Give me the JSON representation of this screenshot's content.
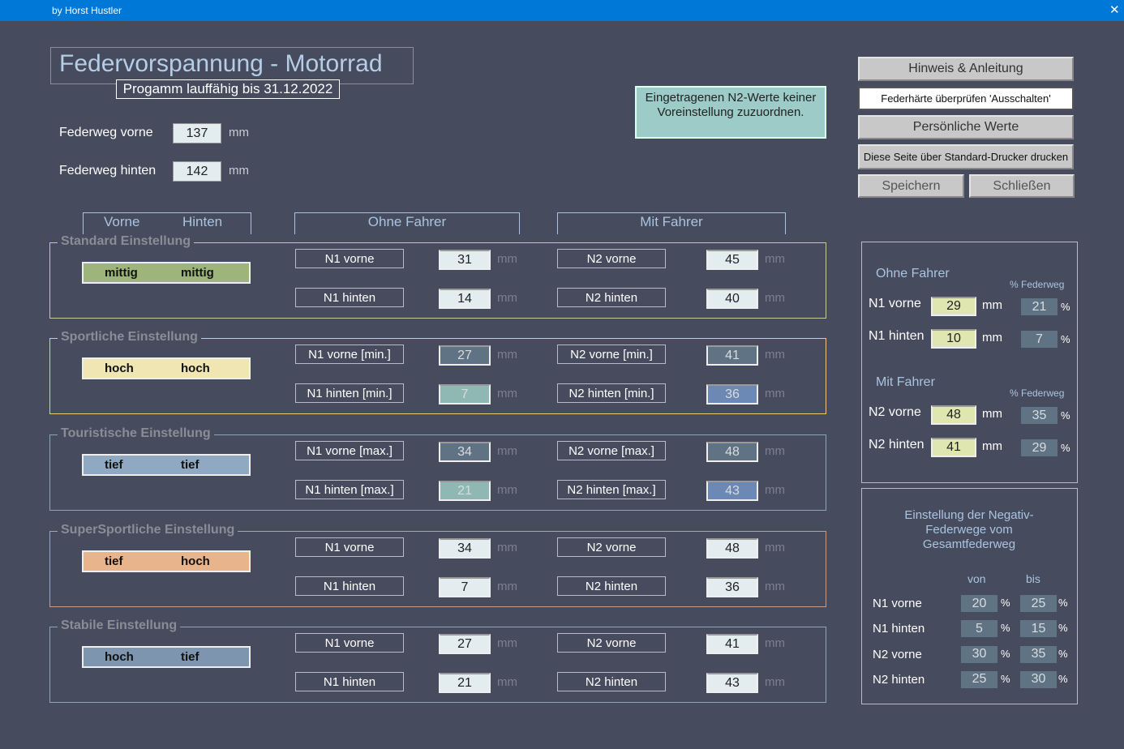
{
  "titlebar": {
    "text": "by Horst Hustler",
    "close": "✕"
  },
  "header": {
    "title": "Federvorspannung - Motorrad",
    "subtitle": "Progamm lauffähig bis 31.12.2022"
  },
  "units": {
    "mm": "mm",
    "pct": "%"
  },
  "travel": [
    {
      "label": "Federweg vorne",
      "value": 137
    },
    {
      "label": "Federweg hinten",
      "value": 142
    }
  ],
  "notice": "Eingetragenen N2-Werte keiner Voreinstellung zuzuordnen.",
  "buttons": [
    "Hinweis & Anleitung",
    "Federhärte überprüfen  'Ausschalten'",
    "Persönliche Werte",
    "Diese Seite über Standard-Drucker drucken",
    "Speichern",
    "Schließen"
  ],
  "column_headers": {
    "front": "Vorne",
    "rear": "Hinten",
    "without_rider": "Ohne Fahrer",
    "with_rider": "Mit Fahrer"
  },
  "sections": [
    {
      "title": "Standard Einstellung",
      "front": "mittig",
      "rear": "mittig",
      "color": "#9db57a",
      "border": "#c8c89a",
      "n1": [
        {
          "label": "N1 vorne",
          "value": 31,
          "color": "#e3ecee"
        },
        {
          "label": "N1 hinten",
          "value": 14,
          "color": "#e3ecee"
        }
      ],
      "n2": [
        {
          "label": "N2 vorne",
          "value": 45,
          "color": "#e3ecee"
        },
        {
          "label": "N2 hinten",
          "value": 40,
          "color": "#e3ecee"
        }
      ]
    },
    {
      "title": "Sportliche Einstellung",
      "front": "hoch",
      "rear": "hoch",
      "color": "#f0e6b4",
      "border": "#e6cd7a",
      "n1": [
        {
          "label": "N1 vorne [min.]",
          "value": 27,
          "color": "#5f7384"
        },
        {
          "label": "N1 hinten [min.]",
          "value": 7,
          "color": "#8fb8b4"
        }
      ],
      "n2": [
        {
          "label": "N2 vorne [min.]",
          "value": 41,
          "color": "#5f7384"
        },
        {
          "label": "N2 hinten [min.]",
          "value": 36,
          "color": "#6b89b4"
        }
      ]
    },
    {
      "title": "Touristische Einstellung",
      "front": "tief",
      "rear": "tief",
      "color": "#8fa9c2",
      "border": "#8aa6b8",
      "n1": [
        {
          "label": "N1 vorne [max.]",
          "value": 34,
          "color": "#5f7384"
        },
        {
          "label": "N1 hinten [max.]",
          "value": 21,
          "color": "#8fb8b4"
        }
      ],
      "n2": [
        {
          "label": "N2 vorne [max.]",
          "value": 48,
          "color": "#5f7384"
        },
        {
          "label": "N2 hinten [max.]",
          "value": 43,
          "color": "#6b89b4"
        }
      ]
    },
    {
      "title": "SuperSportliche Einstellung",
      "front": "tief",
      "rear": "hoch",
      "color": "#e8b48c",
      "border": "#c89a8c",
      "n1": [
        {
          "label": "N1 vorne",
          "value": 34,
          "color": "#e3ecee"
        },
        {
          "label": "N1 hinten",
          "value": 7,
          "color": "#e3ecee"
        }
      ],
      "n2": [
        {
          "label": "N2 vorne",
          "value": 48,
          "color": "#e3ecee"
        },
        {
          "label": "N2 hinten",
          "value": 36,
          "color": "#e3ecee"
        }
      ]
    },
    {
      "title": "Stabile Einstellung",
      "front": "hoch",
      "rear": "tief",
      "color": "#7d95ae",
      "border": "#8aa6b8",
      "n1": [
        {
          "label": "N1 vorne",
          "value": 27,
          "color": "#e3ecee"
        },
        {
          "label": "N1 hinten",
          "value": 21,
          "color": "#e3ecee"
        }
      ],
      "n2": [
        {
          "label": "N2 vorne",
          "value": 41,
          "color": "#e3ecee"
        },
        {
          "label": "N2 hinten",
          "value": 43,
          "color": "#e3ecee"
        }
      ]
    }
  ],
  "personal": {
    "groups": [
      {
        "title": "Ohne Fahrer",
        "pct_header": "% Federweg",
        "rows": [
          {
            "label": "N1 vorne",
            "mm": 29,
            "pct": 21
          },
          {
            "label": "N1 hinten",
            "mm": 10,
            "pct": 7
          }
        ]
      },
      {
        "title": "Mit Fahrer",
        "pct_header": "% Federweg",
        "rows": [
          {
            "label": "N2 vorne",
            "mm": 48,
            "pct": 35
          },
          {
            "label": "N2 hinten",
            "mm": 41,
            "pct": 29
          }
        ]
      }
    ]
  },
  "negative": {
    "title": "Einstellung der Negativ-Federwege vom Gesamtfederweg",
    "from": "von",
    "to": "bis",
    "rows": [
      {
        "label": "N1 vorne",
        "from": 20,
        "to": 25
      },
      {
        "label": "N1 hinten",
        "from": 5,
        "to": 15
      },
      {
        "label": "N2 vorne",
        "from": 30,
        "to": 35
      },
      {
        "label": "N2 hinten",
        "from": 25,
        "to": 30
      }
    ]
  }
}
